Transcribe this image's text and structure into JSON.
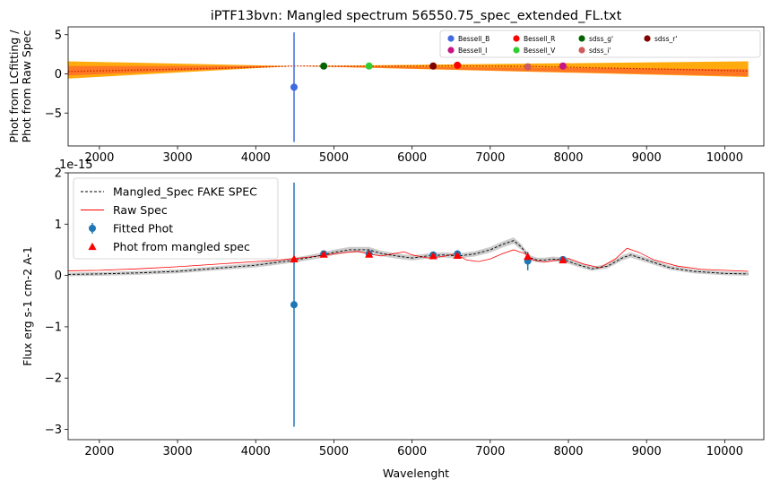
{
  "chart_data": [
    {
      "type": "scatter",
      "title": "iPTF13bvn: Mangled spectrum 56550.75_spec_extended_FL.txt",
      "ylabel_lines": [
        "Phot from LCfitting /",
        "Phot from Raw Spec"
      ],
      "xlim": [
        1600,
        10500
      ],
      "ylim": [
        -9.2,
        6.0
      ],
      "xticks": [
        2000,
        3000,
        4000,
        5000,
        6000,
        7000,
        8000,
        9000,
        10000
      ],
      "yticks": [
        -5,
        0,
        5
      ],
      "legend": {
        "placement": "top-right",
        "columns": 5,
        "entries": [
          {
            "label": "Bessell_B",
            "color": "#4169e1"
          },
          {
            "label": "Bessell_I",
            "color": "#c71585"
          },
          {
            "label": "Bessell_R",
            "color": "#ff0000"
          },
          {
            "label": "Bessell_V",
            "color": "#32cd32"
          },
          {
            "label": "sdss_g'",
            "color": "#006400"
          },
          {
            "label": "sdss_i'",
            "color": "#cd5c5c"
          },
          {
            "label": "sdss_r'",
            "color": "#800000"
          }
        ]
      },
      "ratio_band": {
        "x": [
          1600,
          4500,
          10300
        ],
        "outer_upper": [
          1.6,
          1.0,
          1.6
        ],
        "outer_lower": [
          -0.6,
          1.0,
          -0.4
        ],
        "inner_upper": [
          1.0,
          1.0,
          0.6
        ],
        "inner_lower": [
          -0.2,
          1.0,
          -0.3
        ]
      },
      "ratio_curve": {
        "x": [
          1600,
          2500,
          3500,
          4500,
          5500,
          6500,
          7500,
          8500,
          9500,
          10300
        ],
        "y": [
          0.3,
          0.5,
          0.7,
          1.0,
          0.98,
          1.02,
          0.95,
          0.75,
          0.55,
          0.35
        ]
      },
      "points": [
        {
          "filter": "Bessell_B",
          "x": 4490,
          "y": -1.7,
          "yerr": 7.0,
          "color": "#4169e1"
        },
        {
          "filter": "sdss_g'",
          "x": 4870,
          "y": 1.0,
          "color": "#006400"
        },
        {
          "filter": "Bessell_V",
          "x": 5450,
          "y": 1.0,
          "color": "#32cd32"
        },
        {
          "filter": "sdss_r'",
          "x": 6270,
          "y": 1.0,
          "color": "#800000"
        },
        {
          "filter": "Bessell_R",
          "x": 6580,
          "y": 1.1,
          "color": "#ff0000"
        },
        {
          "filter": "sdss_i'",
          "x": 7480,
          "y": 0.9,
          "color": "#cd5c5c"
        },
        {
          "filter": "Bessell_I",
          "x": 7930,
          "y": 1.0,
          "color": "#c71585"
        }
      ]
    },
    {
      "type": "line",
      "ylabel": "Flux erg s-1 cm-2 A-1",
      "xlabel": "Wavelenght",
      "offset_text": "1e-15",
      "xlim": [
        1600,
        10500
      ],
      "ylim": [
        -3.2,
        2.0
      ],
      "xticks": [
        2000,
        3000,
        4000,
        5000,
        6000,
        7000,
        8000,
        9000,
        10000
      ],
      "yticks": [
        -3,
        -2,
        -1,
        0,
        1,
        2
      ],
      "legend": {
        "placement": "upper-left",
        "entries": [
          {
            "label": "Mangled_Spec FAKE SPEC",
            "kind": "dashed-line",
            "color": "#000000"
          },
          {
            "label": "Raw Spec",
            "kind": "line",
            "color": "#ff0000"
          },
          {
            "label": "Fitted Phot",
            "kind": "errorbar-marker",
            "color": "#1f77b4"
          },
          {
            "label": "Phot from mangled spec",
            "kind": "triangle",
            "color": "#ff0000"
          }
        ]
      },
      "series": [
        {
          "name": "Mangled_Spec FAKE SPEC",
          "color": "#000000",
          "x": [
            1600,
            2000,
            2500,
            3000,
            3500,
            4000,
            4300,
            4500,
            4800,
            5000,
            5200,
            5450,
            5600,
            5800,
            6000,
            6200,
            6400,
            6600,
            6800,
            7000,
            7150,
            7300,
            7400,
            7500,
            7600,
            7700,
            7800,
            7950,
            8100,
            8300,
            8500,
            8700,
            8800,
            9000,
            9300,
            9600,
            10000,
            10300
          ],
          "y": [
            0.02,
            0.03,
            0.05,
            0.08,
            0.14,
            0.2,
            0.26,
            0.3,
            0.38,
            0.45,
            0.5,
            0.5,
            0.43,
            0.38,
            0.34,
            0.38,
            0.4,
            0.38,
            0.42,
            0.5,
            0.6,
            0.68,
            0.55,
            0.35,
            0.3,
            0.3,
            0.32,
            0.3,
            0.22,
            0.13,
            0.18,
            0.35,
            0.4,
            0.3,
            0.15,
            0.08,
            0.04,
            0.03
          ]
        },
        {
          "name": "Raw Spec",
          "color": "#ff0000",
          "x": [
            1600,
            2000,
            2500,
            3000,
            3500,
            4000,
            4300,
            4500,
            4700,
            4900,
            5100,
            5300,
            5450,
            5600,
            5750,
            5900,
            6000,
            6200,
            6400,
            6550,
            6700,
            6850,
            7000,
            7150,
            7300,
            7450,
            7550,
            7700,
            7850,
            8000,
            8200,
            8400,
            8600,
            8750,
            8900,
            9100,
            9400,
            9700,
            10000,
            10300
          ],
          "y": [
            0.09,
            0.1,
            0.13,
            0.17,
            0.22,
            0.27,
            0.3,
            0.33,
            0.36,
            0.4,
            0.44,
            0.47,
            0.42,
            0.38,
            0.42,
            0.46,
            0.4,
            0.34,
            0.37,
            0.42,
            0.3,
            0.27,
            0.32,
            0.42,
            0.5,
            0.42,
            0.3,
            0.26,
            0.3,
            0.33,
            0.22,
            0.15,
            0.32,
            0.53,
            0.45,
            0.3,
            0.18,
            0.12,
            0.1,
            0.08
          ]
        }
      ],
      "fitted_phot": [
        {
          "x": 4490,
          "y": -0.57,
          "yerr": 2.38
        },
        {
          "x": 4870,
          "y": 0.42,
          "yerr": 0.04
        },
        {
          "x": 5450,
          "y": 0.42,
          "yerr": 0.04
        },
        {
          "x": 6270,
          "y": 0.4,
          "yerr": 0.04
        },
        {
          "x": 6580,
          "y": 0.42,
          "yerr": 0.04
        },
        {
          "x": 7480,
          "y": 0.28,
          "yerr": 0.18
        },
        {
          "x": 7930,
          "y": 0.31,
          "yerr": 0.03
        }
      ],
      "mangled_phot": [
        {
          "x": 4490,
          "y": 0.32
        },
        {
          "x": 4870,
          "y": 0.41
        },
        {
          "x": 5450,
          "y": 0.41
        },
        {
          "x": 6270,
          "y": 0.38
        },
        {
          "x": 6580,
          "y": 0.39
        },
        {
          "x": 7480,
          "y": 0.37
        },
        {
          "x": 7930,
          "y": 0.3
        }
      ]
    }
  ]
}
